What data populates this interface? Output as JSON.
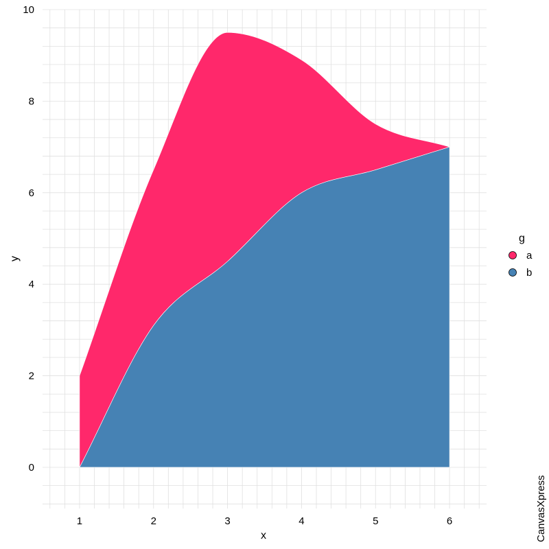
{
  "chart_data": {
    "type": "area",
    "stacked": true,
    "smooth": true,
    "x": [
      1,
      2,
      3,
      4,
      5,
      6
    ],
    "series": [
      {
        "name": "b",
        "values": [
          0,
          3.1,
          4.5,
          6.0,
          6.5,
          7.0
        ],
        "color": "#4682B4"
      },
      {
        "name": "a",
        "values": [
          2,
          3.4,
          5.0,
          2.9,
          1.0,
          0.0
        ],
        "color": "#FF286B"
      }
    ],
    "xlabel": "x",
    "ylabel": "y",
    "xlim": [
      0.5,
      6.5
    ],
    "ylim": [
      -0.9,
      10
    ],
    "xticks": [
      1,
      2,
      3,
      4,
      5,
      6
    ],
    "yticks": [
      0,
      2,
      4,
      6,
      8,
      10
    ],
    "grid": true,
    "legend": {
      "title": "g",
      "position": "right",
      "items": [
        "a",
        "b"
      ]
    },
    "watermark": "CanvasXpress"
  },
  "colors": {
    "grid": "#e0e0e0",
    "background": "#ffffff"
  }
}
